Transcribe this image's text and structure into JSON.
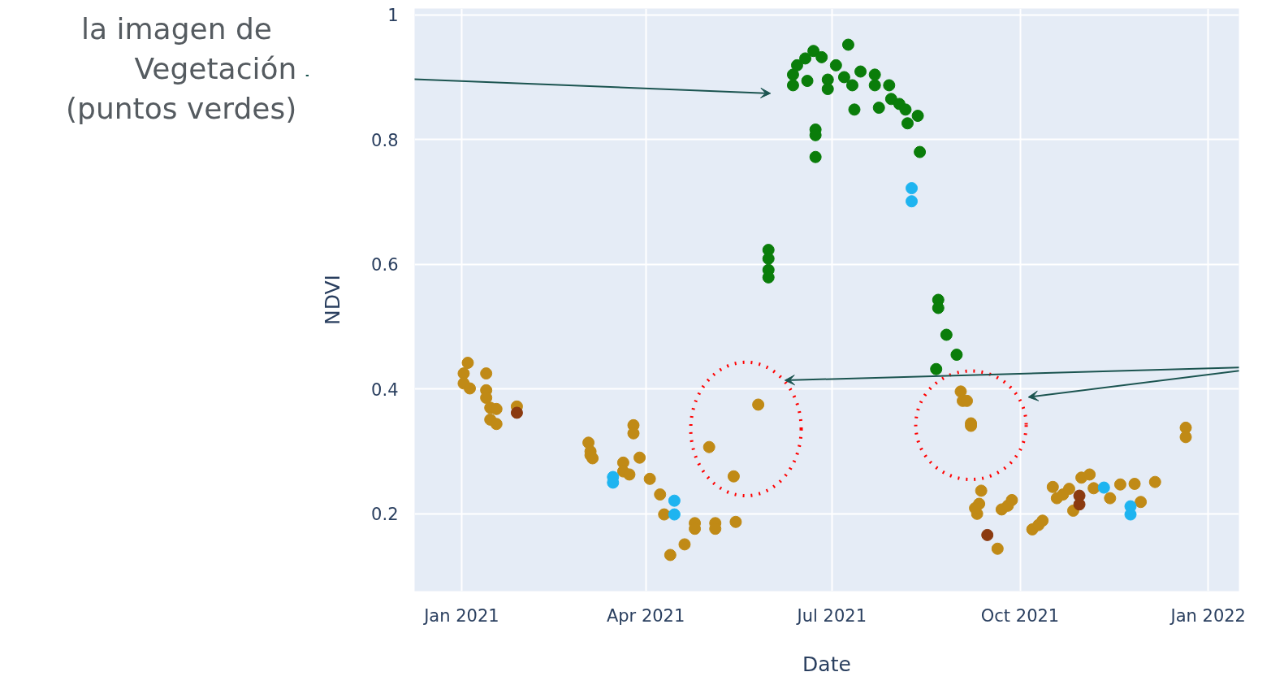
{
  "chart_data": {
    "type": "scatter",
    "xlabel": "Date",
    "ylabel": "NDVI",
    "annotations": [
      "la imagen de",
      "Vegetación\n(puntos verdes)"
    ],
    "xlim": [
      "2020-12-09",
      "2022-01-16"
    ],
    "xticks": [
      {
        "value": "2021-01-01",
        "label": "Jan 2021"
      },
      {
        "value": "2021-04-01",
        "label": "Apr 2021"
      },
      {
        "value": "2021-07-01",
        "label": "Jul 2021"
      },
      {
        "value": "2021-10-01",
        "label": "Oct 2021"
      },
      {
        "value": "2022-01-01",
        "label": "Jan 2022"
      }
    ],
    "ylim": [
      0.076,
      1.01
    ],
    "yticks": [
      0.2,
      0.4,
      0.6,
      0.8,
      1
    ],
    "grid": true,
    "marker": "circle",
    "series": [
      {
        "color": "#c08a16",
        "x": [
          "2021-01-04",
          "2021-01-02",
          "2021-01-02",
          "2021-01-05",
          "2021-01-13",
          "2021-01-13",
          "2021-01-13",
          "2021-01-15",
          "2021-01-18",
          "2021-01-15",
          "2021-01-18",
          "2021-01-28",
          "2021-03-04",
          "2021-03-05",
          "2021-03-06",
          "2021-03-05",
          "2021-03-21",
          "2021-03-21",
          "2021-03-24",
          "2021-03-26",
          "2021-03-26",
          "2021-03-29",
          "2021-04-03",
          "2021-04-08",
          "2021-04-10",
          "2021-04-13",
          "2021-04-20",
          "2021-04-25",
          "2021-04-25",
          "2021-05-02",
          "2021-05-05",
          "2021-05-05",
          "2021-05-14",
          "2021-05-15",
          "2021-05-26",
          "2021-09-02",
          "2021-09-03",
          "2021-09-05",
          "2021-09-07",
          "2021-09-07",
          "2021-09-12",
          "2021-09-11",
          "2021-09-10",
          "2021-09-09",
          "2021-09-22",
          "2021-09-25",
          "2021-09-27",
          "2021-09-20",
          "2021-10-07",
          "2021-10-10",
          "2021-10-12",
          "2021-10-17",
          "2021-10-19",
          "2021-10-22",
          "2021-10-25",
          "2021-10-27",
          "2021-10-31",
          "2021-11-04",
          "2021-11-06",
          "2021-11-14",
          "2021-11-19",
          "2021-11-26",
          "2021-11-29",
          "2021-12-06",
          "2021-12-21",
          "2021-12-21"
        ],
        "values": [
          0.442,
          0.425,
          0.409,
          0.401,
          0.425,
          0.398,
          0.386,
          0.37,
          0.368,
          0.351,
          0.344,
          0.372,
          0.314,
          0.3,
          0.289,
          0.294,
          0.282,
          0.268,
          0.263,
          0.342,
          0.329,
          0.29,
          0.256,
          0.231,
          0.199,
          0.134,
          0.151,
          0.185,
          0.176,
          0.307,
          0.185,
          0.176,
          0.26,
          0.187,
          0.375,
          0.396,
          0.381,
          0.381,
          0.345,
          0.341,
          0.237,
          0.216,
          0.2,
          0.209,
          0.207,
          0.213,
          0.222,
          0.144,
          0.175,
          0.182,
          0.189,
          0.243,
          0.225,
          0.231,
          0.24,
          0.205,
          0.258,
          0.263,
          0.241,
          0.225,
          0.247,
          0.248,
          0.219,
          0.251,
          0.338,
          0.323
        ]
      },
      {
        "color": "#8b3a10",
        "x": [
          "2021-01-28",
          "2021-09-15",
          "2021-10-30",
          "2021-10-30"
        ],
        "values": [
          0.362,
          0.166,
          0.229,
          0.215
        ]
      },
      {
        "color": "#1eb4f0",
        "x": [
          "2021-03-16",
          "2021-03-16",
          "2021-04-15",
          "2021-04-15",
          "2021-08-09",
          "2021-08-09",
          "2021-11-11",
          "2021-11-24",
          "2021-11-24"
        ],
        "values": [
          0.259,
          0.25,
          0.221,
          0.199,
          0.722,
          0.701,
          0.242,
          0.212,
          0.199
        ]
      },
      {
        "color": "#0a7d0a",
        "x": [
          "2021-05-31",
          "2021-05-31",
          "2021-05-31",
          "2021-05-31",
          "2021-06-23",
          "2021-06-23",
          "2021-06-23",
          "2021-06-12",
          "2021-06-12",
          "2021-06-14",
          "2021-06-18",
          "2021-06-22",
          "2021-06-19",
          "2021-06-26",
          "2021-06-29",
          "2021-06-29",
          "2021-07-03",
          "2021-07-09",
          "2021-07-07",
          "2021-07-11",
          "2021-07-12",
          "2021-07-15",
          "2021-07-22",
          "2021-07-22",
          "2021-07-24",
          "2021-07-29",
          "2021-07-30",
          "2021-08-03",
          "2021-08-06",
          "2021-08-07",
          "2021-08-12",
          "2021-08-13",
          "2021-08-22",
          "2021-08-22",
          "2021-08-26",
          "2021-08-31",
          "2021-08-21"
        ],
        "values": [
          0.623,
          0.609,
          0.591,
          0.579,
          0.816,
          0.807,
          0.772,
          0.887,
          0.904,
          0.919,
          0.93,
          0.942,
          0.894,
          0.932,
          0.896,
          0.881,
          0.919,
          0.952,
          0.9,
          0.887,
          0.848,
          0.909,
          0.904,
          0.887,
          0.851,
          0.887,
          0.865,
          0.857,
          0.848,
          0.826,
          0.838,
          0.78,
          0.543,
          0.53,
          0.487,
          0.455,
          0.432
        ]
      }
    ]
  }
}
